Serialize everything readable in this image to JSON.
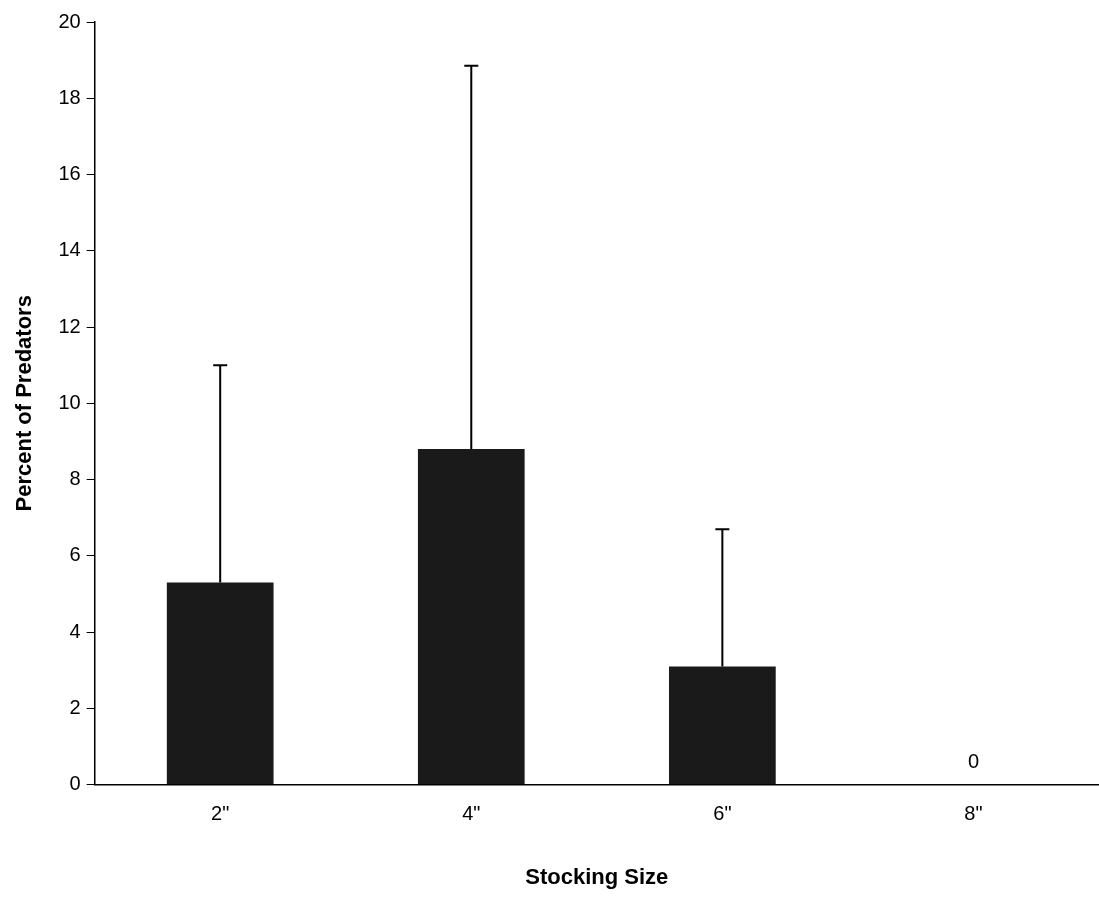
{
  "chart_data": {
    "type": "bar",
    "xlabel": "Stocking Size",
    "ylabel": "Percent of Predators",
    "categories": [
      "2\"",
      "4\"",
      "6\"",
      "8\""
    ],
    "values": [
      5.3,
      8.8,
      3.1,
      0
    ],
    "errors": [
      [
        5.3,
        11.0
      ],
      [
        8.8,
        18.85
      ],
      [
        3.1,
        6.7
      ],
      null
    ],
    "value_labels": [
      null,
      null,
      null,
      "0"
    ],
    "color": "#1a1a1a",
    "ylim": [
      0,
      20
    ],
    "yticks": [
      0,
      2,
      4,
      6,
      8,
      10,
      12,
      14,
      16,
      18,
      20
    ],
    "grid": false,
    "legend": false
  }
}
